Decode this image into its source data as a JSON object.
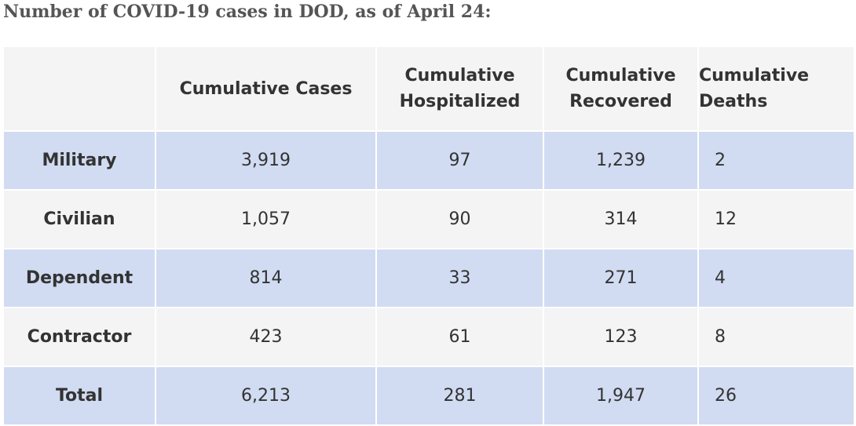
{
  "heading": "Number of COVID-19 cases in DOD, as of April 24:",
  "table": {
    "headers": {
      "corner": "",
      "cases": "Cumulative Cases",
      "hosp_line1": "Cumulative",
      "hosp_line2": "Hospitalized",
      "rec_line1": "Cumulative",
      "rec_line2": "Recovered",
      "deaths_line1": "Cumulative",
      "deaths_line2": "Deaths"
    },
    "rows": [
      {
        "label": "Military",
        "cases": "3,919",
        "hospitalized": "97",
        "recovered": "1,239",
        "deaths": "2"
      },
      {
        "label": "Civilian",
        "cases": "1,057",
        "hospitalized": "90",
        "recovered": "314",
        "deaths": "12"
      },
      {
        "label": "Dependent",
        "cases": "814",
        "hospitalized": "33",
        "recovered": "271",
        "deaths": "4"
      },
      {
        "label": "Contractor",
        "cases": "423",
        "hospitalized": "61",
        "recovered": "123",
        "deaths": "8"
      },
      {
        "label": "Total",
        "cases": "6,213",
        "hospitalized": "281",
        "recovered": "1,947",
        "deaths": "26"
      }
    ]
  },
  "colors": {
    "shaded_row": "#d1dcf2",
    "plain_row": "#f4f4f4",
    "heading_text": "#555555",
    "cell_text": "#333333"
  }
}
